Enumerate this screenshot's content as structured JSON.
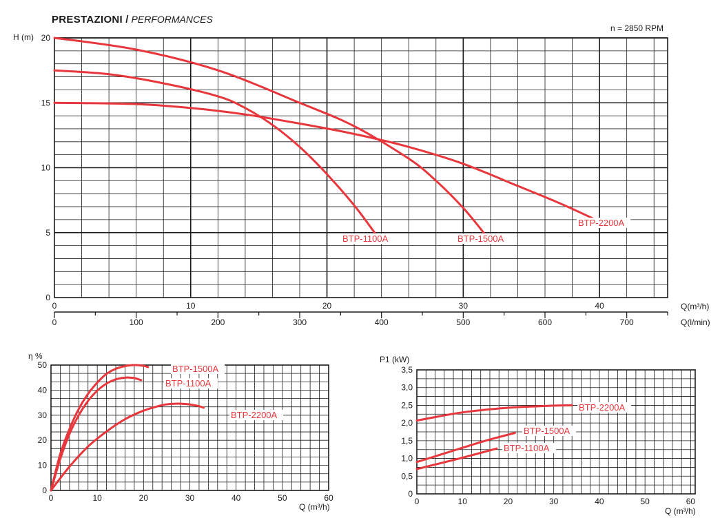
{
  "header": {
    "title_main": "PRESTAZIONI",
    "title_sep": " / ",
    "title_italic": "PERFORMANCES",
    "speed": "n = 2850 RPM"
  },
  "colors": {
    "curve": "#e8373c",
    "label": "#e8373c",
    "grid_minor": "#1a1a1a",
    "grid_major": "#1a1a1a"
  },
  "chart_data": [
    {
      "id": "head",
      "type": "line",
      "title": "PRESTAZIONI / PERFORMANCES",
      "ylabel": "H (m)",
      "xlabel": "Q(m³/h)",
      "xlabel2": "Q(l/min)",
      "xlim": [
        0,
        45
      ],
      "ylim": [
        0,
        20
      ],
      "x_ticks": [
        0,
        10,
        20,
        30,
        40
      ],
      "x_tick_labels": [
        "0",
        "10",
        "20",
        "30",
        "40"
      ],
      "y_ticks": [
        0,
        5,
        10,
        15,
        20
      ],
      "y_tick_labels": [
        "0",
        "5",
        "10",
        "15",
        "20"
      ],
      "x2_ticks_lmin": [
        0,
        100,
        200,
        300,
        400,
        500,
        600,
        700
      ],
      "x2_tick_labels": [
        "0",
        "100",
        "200",
        "300",
        "400",
        "500",
        "600",
        "700"
      ],
      "grid": true,
      "series": [
        {
          "name": "BTP-1100A",
          "x": [
            0,
            4,
            8,
            12,
            14,
            16,
            18,
            20,
            22,
            23.5
          ],
          "y": [
            17.5,
            17.2,
            16.5,
            15.5,
            14.6,
            13.3,
            11.6,
            9.5,
            7.1,
            5.0
          ]
        },
        {
          "name": "BTP-1500A",
          "x": [
            0,
            6,
            12,
            18,
            22,
            26,
            28,
            30,
            31.5
          ],
          "y": [
            20,
            19.1,
            17.5,
            15.0,
            13.2,
            10.7,
            9.0,
            6.9,
            5.0
          ]
        },
        {
          "name": "BTP-2200A",
          "x": [
            0,
            6,
            10,
            14,
            18,
            22,
            26,
            30,
            34,
            37,
            39.5
          ],
          "y": [
            15,
            14.9,
            14.6,
            14.1,
            13.4,
            12.6,
            11.6,
            10.3,
            8.6,
            7.3,
            6.1
          ]
        }
      ]
    },
    {
      "id": "efficiency",
      "type": "line",
      "ylabel": "η %",
      "xlabel": "Q (m³/h)",
      "xlim": [
        0,
        60
      ],
      "ylim": [
        0,
        50
      ],
      "x_ticks": [
        0,
        10,
        20,
        30,
        40,
        50,
        60
      ],
      "x_tick_labels": [
        "0",
        "10",
        "20",
        "30",
        "40",
        "50",
        "60"
      ],
      "y_ticks": [
        0,
        10,
        20,
        30,
        40,
        50
      ],
      "y_tick_labels": [
        "0",
        "10",
        "20",
        "30",
        "40",
        "50"
      ],
      "grid": true,
      "series": [
        {
          "name": "BTP-1500A",
          "x": [
            0,
            2,
            4,
            6,
            8,
            10,
            12,
            14,
            16,
            18,
            20,
            21
          ],
          "y": [
            0,
            14.5,
            24.5,
            32.5,
            38.5,
            43.0,
            46.5,
            48.5,
            49.6,
            50.0,
            49.7,
            49.2
          ]
        },
        {
          "name": "BTP-1100A",
          "x": [
            0,
            2,
            4,
            6,
            8,
            10,
            12,
            14,
            16,
            17,
            18,
            19.5
          ],
          "y": [
            0,
            12.5,
            22.5,
            30.0,
            35.7,
            39.8,
            42.6,
            44.3,
            45.0,
            45.0,
            44.8,
            44.0
          ]
        },
        {
          "name": "BTP-2200A",
          "x": [
            0,
            4,
            8,
            12,
            16,
            20,
            24,
            26,
            28,
            30,
            32,
            33
          ],
          "y": [
            0,
            9.5,
            17.5,
            23.5,
            28.4,
            31.8,
            34.0,
            34.5,
            34.6,
            34.3,
            33.6,
            33.0
          ]
        }
      ]
    },
    {
      "id": "power",
      "type": "line",
      "ylabel": "P1 (kW)",
      "xlabel": "Q (m³/h)",
      "xlim": [
        0,
        61
      ],
      "ylim": [
        0,
        3.5
      ],
      "x_ticks": [
        0,
        10,
        20,
        30,
        40,
        50,
        60
      ],
      "x_tick_labels": [
        "0",
        "10",
        "20",
        "30",
        "40",
        "50",
        "60"
      ],
      "y_ticks": [
        0,
        0.5,
        1.0,
        1.5,
        2.0,
        2.5,
        3.0,
        3.5
      ],
      "y_tick_labels": [
        "0",
        "0,5",
        "1,0",
        "1,5",
        "2,0",
        "2,5",
        "3,0",
        "3,5"
      ],
      "grid": true,
      "series": [
        {
          "name": "BTP-2200A",
          "x": [
            0,
            10,
            20,
            30,
            34
          ],
          "y": [
            2.07,
            2.3,
            2.43,
            2.49,
            2.5
          ]
        },
        {
          "name": "BTP-1500A",
          "x": [
            0,
            5,
            10,
            15,
            21.5
          ],
          "y": [
            0.9,
            1.1,
            1.3,
            1.5,
            1.72
          ]
        },
        {
          "name": "BTP-1100A",
          "x": [
            0,
            5,
            10,
            17.5
          ],
          "y": [
            0.7,
            0.86,
            1.02,
            1.28
          ]
        }
      ]
    }
  ]
}
